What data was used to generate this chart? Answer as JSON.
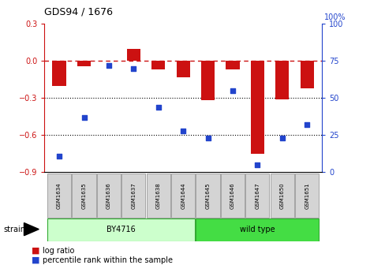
{
  "title": "GDS94 / 1676",
  "samples": [
    "GSM1634",
    "GSM1635",
    "GSM1636",
    "GSM1637",
    "GSM1638",
    "GSM1644",
    "GSM1645",
    "GSM1646",
    "GSM1647",
    "GSM1650",
    "GSM1651"
  ],
  "log_ratios": [
    -0.2,
    -0.04,
    0.0,
    0.1,
    -0.07,
    -0.13,
    -0.32,
    -0.07,
    -0.75,
    -0.31,
    -0.22
  ],
  "percentile_ranks": [
    11,
    37,
    72,
    70,
    44,
    28,
    23,
    55,
    5,
    23,
    32
  ],
  "by4716_count": 6,
  "wild_type_count": 5,
  "ylim_left": [
    -0.9,
    0.3
  ],
  "ylim_right": [
    0,
    100
  ],
  "bar_color": "#cc1111",
  "point_color": "#2244cc",
  "dashed_line_color": "#cc1111",
  "dotted_line_color": "#000000",
  "by4716_fill": "#ccffcc",
  "wild_type_fill": "#44dd44",
  "sample_box_fill": "#d4d4d4",
  "sample_box_edge": "#888888"
}
